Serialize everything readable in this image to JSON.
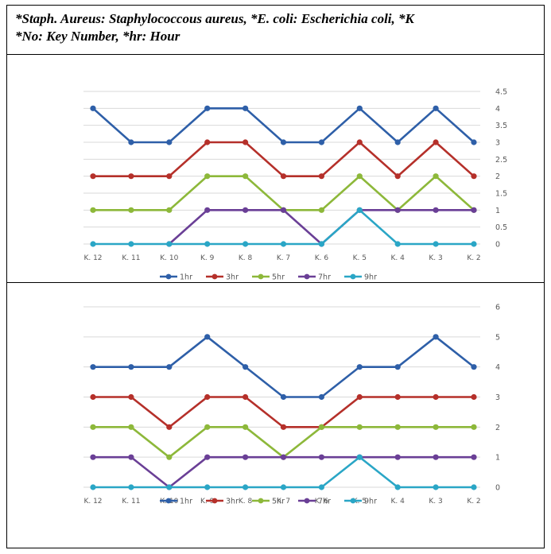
{
  "caption": {
    "line1": "*Staph. Aureus: Staphylococcous aureus, *E. coli: Escherichia coli, *K",
    "line2": "*No: Key Number, *hr: Hour"
  },
  "chart_data": [
    {
      "type": "line",
      "categories": [
        "K. 12",
        "K. 11",
        "K. 10",
        "K. 9",
        "K. 8",
        "K. 7",
        "K. 6",
        "K. 5",
        "K. 4",
        "K. 3",
        "K. 2"
      ],
      "series": [
        {
          "name": "1hr",
          "color": "#2e5fa8",
          "values": [
            4,
            3,
            3,
            4,
            4,
            3,
            3,
            4,
            3,
            4,
            3
          ]
        },
        {
          "name": "3hr",
          "color": "#b5302a",
          "values": [
            2,
            2,
            2,
            3,
            3,
            2,
            2,
            3,
            2,
            3,
            2
          ]
        },
        {
          "name": "5hr",
          "color": "#8db83a",
          "values": [
            1,
            1,
            1,
            2,
            2,
            1,
            1,
            2,
            1,
            2,
            1
          ]
        },
        {
          "name": "7hr",
          "color": "#6a3f96",
          "values": [
            null,
            null,
            0,
            1,
            1,
            1,
            0,
            1,
            1,
            1,
            1
          ]
        },
        {
          "name": "9hr",
          "color": "#2aa6c6",
          "values": [
            0,
            0,
            0,
            0,
            0,
            0,
            0,
            1,
            0,
            0,
            0
          ]
        }
      ],
      "ylim": [
        0,
        4.5
      ],
      "yticks": [
        "0",
        "0.5",
        "1",
        "1.5",
        "2",
        "2.5",
        "3",
        "3.5",
        "4",
        "4.5"
      ],
      "ytick_values": [
        0,
        0.5,
        1,
        1.5,
        2,
        2.5,
        3,
        3.5,
        4,
        4.5
      ],
      "yaxis_side": "right",
      "grid": true,
      "legend": "bottom"
    },
    {
      "type": "line",
      "categories": [
        "K. 12",
        "K. 11",
        "K. 10",
        "K. 9",
        "K. 8",
        "K. 7",
        "K. 6",
        "K. 5",
        "K. 4",
        "K. 3",
        "K. 2"
      ],
      "series": [
        {
          "name": "1hr",
          "color": "#2e5fa8",
          "values": [
            4,
            4,
            4,
            5,
            4,
            3,
            3,
            4,
            4,
            5,
            4
          ]
        },
        {
          "name": "3hr",
          "color": "#b5302a",
          "values": [
            3,
            3,
            2,
            3,
            3,
            2,
            2,
            3,
            3,
            3,
            3
          ]
        },
        {
          "name": "5hr",
          "color": "#8db83a",
          "values": [
            2,
            2,
            1,
            2,
            2,
            1,
            2,
            2,
            2,
            2,
            2
          ]
        },
        {
          "name": "7hr",
          "color": "#6a3f96",
          "values": [
            1,
            1,
            0,
            1,
            1,
            1,
            1,
            1,
            1,
            1,
            1
          ]
        },
        {
          "name": "9hr",
          "color": "#2aa6c6",
          "values": [
            0,
            0,
            0,
            0,
            0,
            0,
            0,
            1,
            0,
            0,
            0
          ]
        }
      ],
      "ylim": [
        0,
        6
      ],
      "yticks": [
        "0",
        "1",
        "2",
        "3",
        "4",
        "5",
        "6"
      ],
      "ytick_values": [
        0,
        1,
        2,
        3,
        4,
        5,
        6
      ],
      "yaxis_side": "right",
      "grid": true,
      "legend": "bottom"
    }
  ]
}
